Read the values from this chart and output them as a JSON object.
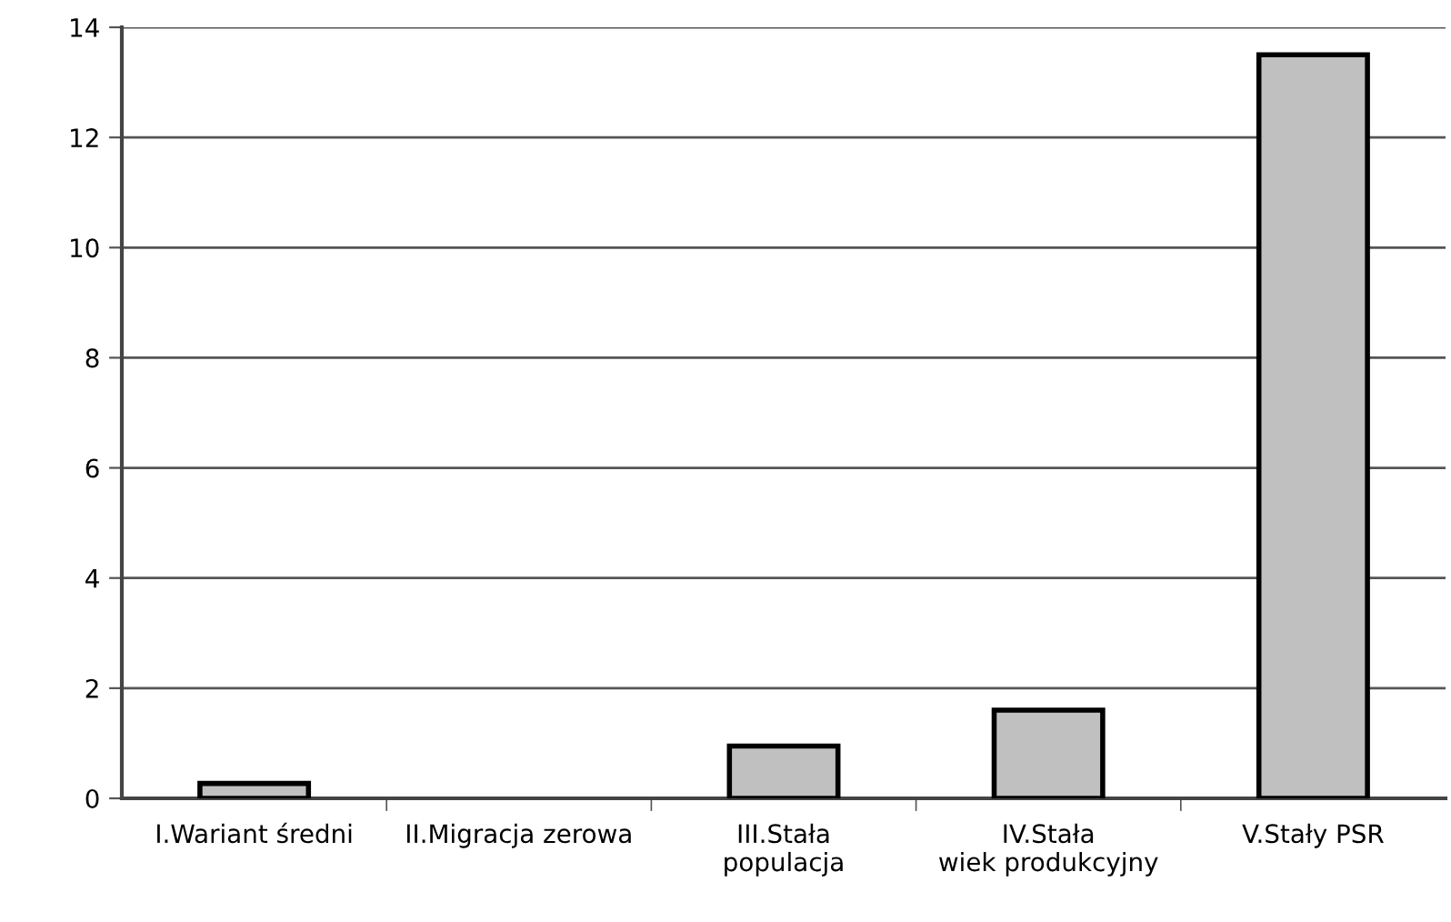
{
  "chart_data": {
    "type": "bar",
    "categories": [
      "I.Wariant średni",
      "II.Migracja zerowa",
      "III.Stała\npopulacja",
      "IV.Stała\nwiek produkcyjny",
      "V.Stały PSR"
    ],
    "values": [
      0.27,
      0,
      0.95,
      1.6,
      13.5
    ],
    "color": "#c0c0c0",
    "ylim": [
      0,
      14
    ],
    "yticks": [
      0,
      2,
      4,
      6,
      8,
      10,
      12,
      14
    ],
    "grid": "y"
  }
}
